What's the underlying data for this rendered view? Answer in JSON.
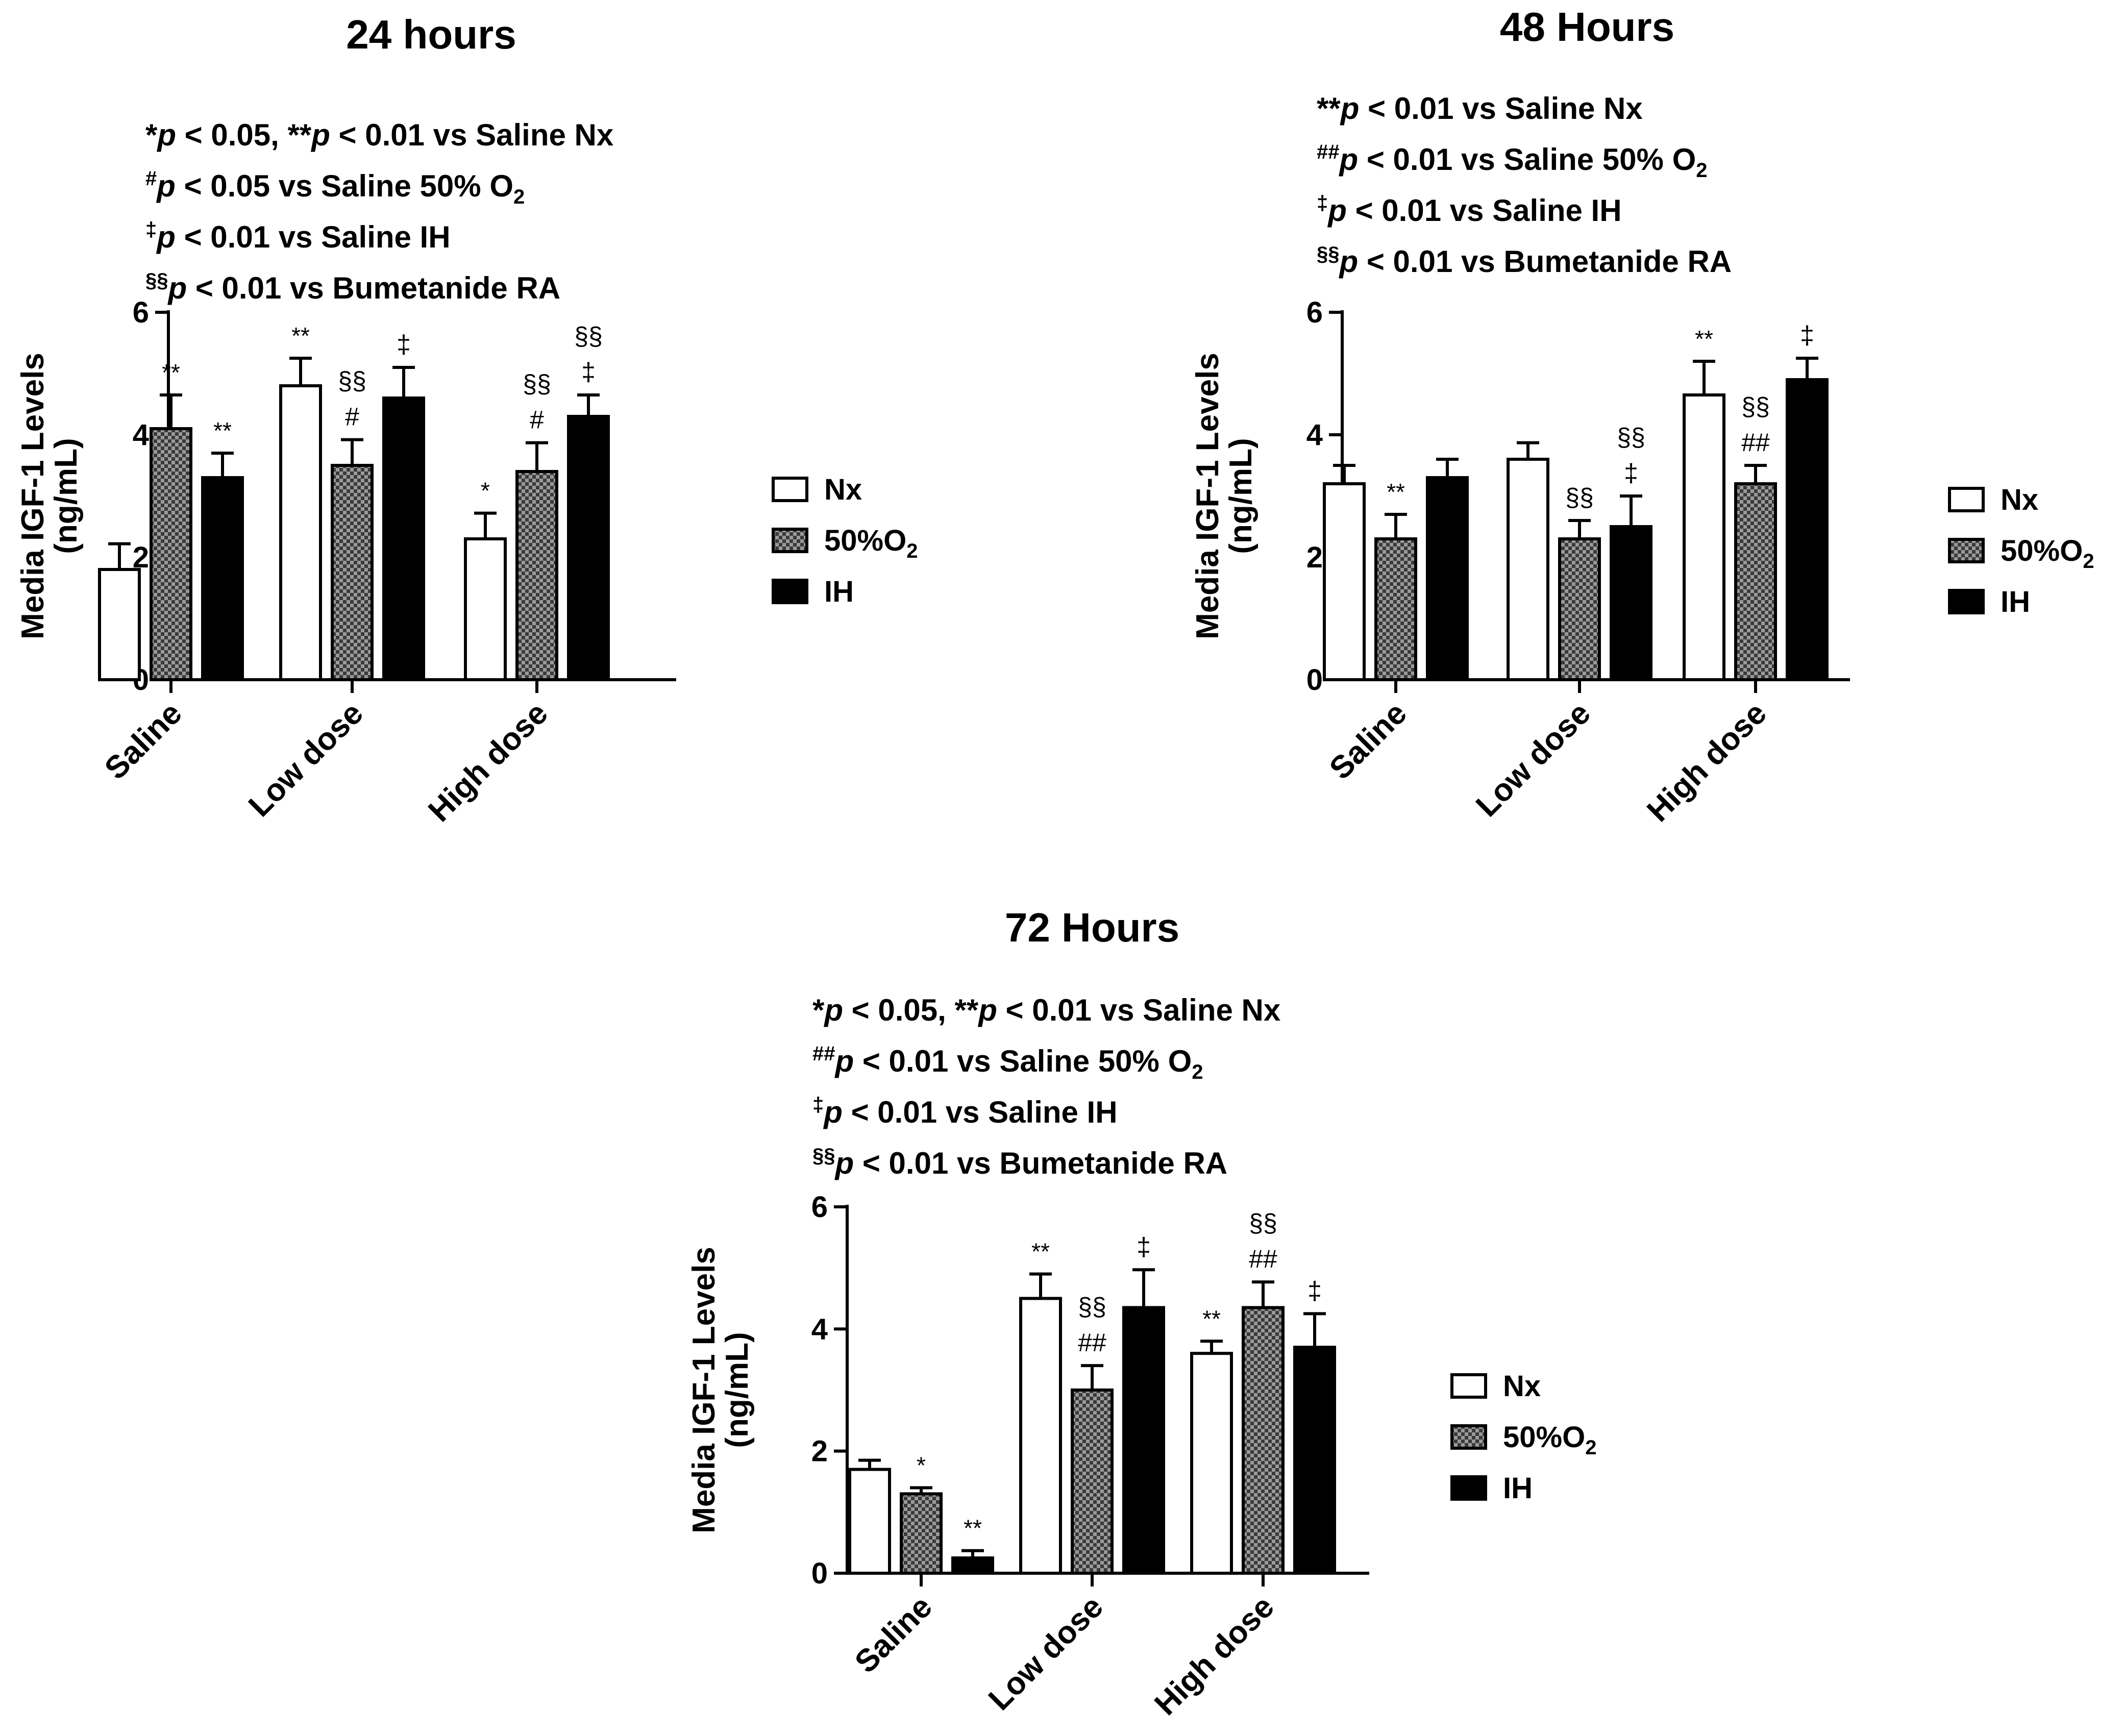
{
  "colors": {
    "ink": "#000000",
    "open": "#ffffff",
    "hatch": "#8a8a8a",
    "solid": "#000000"
  },
  "legend": [
    {
      "key": "nx",
      "label": "Nx",
      "style": "open"
    },
    {
      "key": "o2",
      "label": "50%O",
      "sub": "2",
      "style": "hatch"
    },
    {
      "key": "ih",
      "label": "IH",
      "style": "solid"
    }
  ],
  "chart_data": [
    {
      "type": "bar",
      "id": "p24",
      "title": "24 hours",
      "ylabel": "Media IGF-1 Levels",
      "ylabel2": "(ng/mL)",
      "ylim": [
        0,
        6
      ],
      "yticks": [
        "0",
        "2",
        "4",
        "6"
      ],
      "categories": [
        "Saline",
        "Low dose",
        "High dose"
      ],
      "notes": [
        [
          {
            "t": "*"
          },
          {
            "t": "p",
            "i": 1
          },
          {
            "t": " < 0.05, **"
          },
          {
            "t": "p",
            "i": 1
          },
          {
            "t": " < 0.01 vs Saline Nx"
          }
        ],
        [
          {
            "t": "#",
            "sup": 1
          },
          {
            "t": "p",
            "i": 1
          },
          {
            "t": " < 0.05 vs Saline 50% O"
          },
          {
            "t": "2",
            "sub": 1
          }
        ],
        [
          {
            "t": "‡",
            "sup": 1
          },
          {
            "t": "p",
            "i": 1
          },
          {
            "t": " < 0.01 vs Saline IH"
          }
        ],
        [
          {
            "t": "§§",
            "sup": 1
          },
          {
            "t": "p",
            "i": 1
          },
          {
            "t": " < 0.01 vs Bumetanide RA"
          }
        ]
      ],
      "series": [
        {
          "name": "Nx",
          "style": "open",
          "values": [
            1.8,
            4.8,
            2.3
          ],
          "errors": [
            0.42,
            0.45,
            0.42
          ],
          "labels": [
            [],
            [
              "**"
            ],
            [
              "*"
            ]
          ]
        },
        {
          "name": "50%O2",
          "style": "hatch",
          "values": [
            4.1,
            3.5,
            3.4
          ],
          "errors": [
            0.55,
            0.42,
            0.47
          ],
          "labels": [
            [
              "**"
            ],
            [
              "§§",
              "#"
            ],
            [
              "§§",
              "#"
            ]
          ]
        },
        {
          "name": "IH",
          "style": "solid",
          "values": [
            3.3,
            4.6,
            4.3
          ],
          "errors": [
            0.4,
            0.5,
            0.35
          ],
          "labels": [
            [
              "**"
            ],
            [
              "‡"
            ],
            [
              "§§",
              "‡"
            ]
          ]
        }
      ]
    },
    {
      "type": "bar",
      "id": "p48",
      "title": "48 Hours",
      "ylabel": "Media IGF-1 Levels",
      "ylabel2": "(ng/mL)",
      "ylim": [
        0,
        6
      ],
      "yticks": [
        "0",
        "2",
        "4",
        "6"
      ],
      "categories": [
        "Saline",
        "Low dose",
        "High dose"
      ],
      "notes": [
        [
          {
            "t": "**"
          },
          {
            "t": "p",
            "i": 1
          },
          {
            "t": " < 0.01 vs Saline Nx"
          }
        ],
        [
          {
            "t": "##",
            "sup": 1
          },
          {
            "t": "p",
            "i": 1
          },
          {
            "t": " < 0.01 vs Saline 50% O"
          },
          {
            "t": "2",
            "sub": 1
          }
        ],
        [
          {
            "t": "‡",
            "sup": 1
          },
          {
            "t": "p",
            "i": 1
          },
          {
            "t": " < 0.01 vs Saline IH"
          }
        ],
        [
          {
            "t": "§§",
            "sup": 1
          },
          {
            "t": "p",
            "i": 1
          },
          {
            "t": " < 0.01 vs Bumetanide RA"
          }
        ]
      ],
      "series": [
        {
          "name": "Nx",
          "style": "open",
          "values": [
            3.2,
            3.6,
            4.65
          ],
          "errors": [
            0.3,
            0.27,
            0.55
          ],
          "labels": [
            [],
            [],
            [
              "**"
            ]
          ]
        },
        {
          "name": "50%O2",
          "style": "hatch",
          "values": [
            2.3,
            2.3,
            3.2
          ],
          "errors": [
            0.4,
            0.3,
            0.3
          ],
          "labels": [
            [
              "**"
            ],
            [
              "§§"
            ],
            [
              "§§",
              "##"
            ]
          ]
        },
        {
          "name": "IH",
          "style": "solid",
          "values": [
            3.3,
            2.5,
            4.9
          ],
          "errors": [
            0.3,
            0.5,
            0.35
          ],
          "labels": [
            [],
            [
              "§§",
              "‡"
            ],
            [
              "‡"
            ]
          ]
        }
      ]
    },
    {
      "type": "bar",
      "id": "p72",
      "title": "72 Hours",
      "ylabel": "Media IGF-1 Levels",
      "ylabel2": "(ng/mL)",
      "ylim": [
        0,
        6
      ],
      "yticks": [
        "0",
        "2",
        "4",
        "6"
      ],
      "categories": [
        "Saline",
        "Low dose",
        "High dose"
      ],
      "notes": [
        [
          {
            "t": "*"
          },
          {
            "t": "p",
            "i": 1
          },
          {
            "t": " < 0.05, **"
          },
          {
            "t": "p",
            "i": 1
          },
          {
            "t": " < 0.01 vs Saline Nx"
          }
        ],
        [
          {
            "t": "##",
            "sup": 1
          },
          {
            "t": "p",
            "i": 1
          },
          {
            "t": " < 0.01 vs Saline 50% O"
          },
          {
            "t": "2",
            "sub": 1
          }
        ],
        [
          {
            "t": "‡",
            "sup": 1
          },
          {
            "t": "p",
            "i": 1
          },
          {
            "t": " < 0.01 vs Saline IH"
          }
        ],
        [
          {
            "t": "§§",
            "sup": 1
          },
          {
            "t": "p",
            "i": 1
          },
          {
            "t": " < 0.01 vs Bumetanide RA"
          }
        ]
      ],
      "series": [
        {
          "name": "Nx",
          "style": "open",
          "values": [
            1.7,
            4.5,
            3.6
          ],
          "errors": [
            0.15,
            0.4,
            0.2
          ],
          "labels": [
            [],
            [
              "**"
            ],
            [
              "**"
            ]
          ]
        },
        {
          "name": "50%O2",
          "style": "hatch",
          "values": [
            1.3,
            3.0,
            4.35
          ],
          "errors": [
            0.1,
            0.4,
            0.42
          ],
          "labels": [
            [
              "*"
            ],
            [
              "§§",
              "##"
            ],
            [
              "§§",
              "##"
            ]
          ]
        },
        {
          "name": "IH",
          "style": "solid",
          "values": [
            0.25,
            4.35,
            3.7
          ],
          "errors": [
            0.12,
            0.62,
            0.55
          ],
          "labels": [
            [
              "**"
            ],
            [
              "‡"
            ],
            [
              "‡"
            ]
          ]
        }
      ]
    }
  ]
}
